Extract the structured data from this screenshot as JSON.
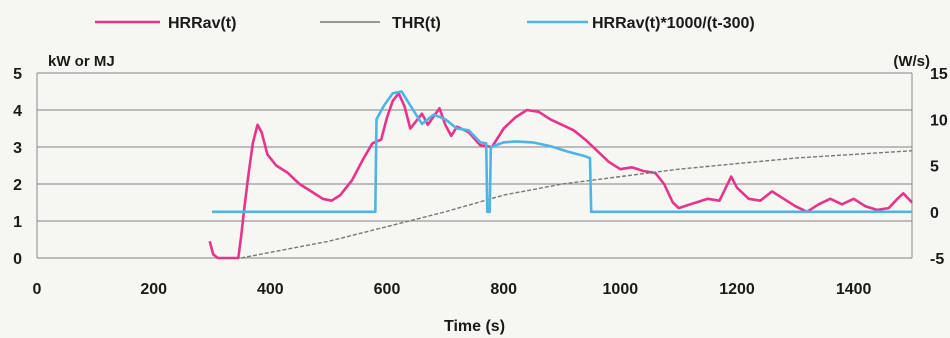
{
  "chart_data": {
    "type": "line",
    "xlabel": "Time (s)",
    "ylabel_left": "kW or MJ",
    "ylabel_right": "(W/s)",
    "xlim": [
      0,
      1500
    ],
    "ylim_left": [
      0,
      5
    ],
    "ylim_right": [
      -5,
      15
    ],
    "x_ticks": [
      "0",
      "200",
      "400",
      "600",
      "800",
      "1000",
      "1200",
      "1400"
    ],
    "y_ticks_left": [
      "0",
      "1",
      "2",
      "3",
      "4",
      "5"
    ],
    "y_ticks_right": [
      "-5",
      "0",
      "5",
      "10",
      "15"
    ],
    "grid": true,
    "legend_position": "top",
    "series": [
      {
        "name": "HRRav(t)",
        "axis": "left",
        "color": "#e8338a",
        "points": [
          [
            296,
            0.45
          ],
          [
            302,
            0.1
          ],
          [
            310,
            0.0
          ],
          [
            345,
            0.0
          ],
          [
            350,
            0.6
          ],
          [
            355,
            1.3
          ],
          [
            362,
            2.2
          ],
          [
            370,
            3.1
          ],
          [
            378,
            3.6
          ],
          [
            385,
            3.4
          ],
          [
            395,
            2.8
          ],
          [
            410,
            2.5
          ],
          [
            430,
            2.3
          ],
          [
            450,
            2.0
          ],
          [
            470,
            1.8
          ],
          [
            490,
            1.6
          ],
          [
            505,
            1.55
          ],
          [
            520,
            1.7
          ],
          [
            540,
            2.1
          ],
          [
            560,
            2.7
          ],
          [
            575,
            3.1
          ],
          [
            590,
            3.2
          ],
          [
            600,
            3.8
          ],
          [
            610,
            4.25
          ],
          [
            620,
            4.45
          ],
          [
            630,
            4.1
          ],
          [
            640,
            3.5
          ],
          [
            650,
            3.7
          ],
          [
            660,
            3.9
          ],
          [
            670,
            3.6
          ],
          [
            690,
            4.05
          ],
          [
            700,
            3.6
          ],
          [
            710,
            3.3
          ],
          [
            720,
            3.55
          ],
          [
            740,
            3.4
          ],
          [
            760,
            3.05
          ],
          [
            780,
            3.0
          ],
          [
            800,
            3.5
          ],
          [
            820,
            3.8
          ],
          [
            840,
            4.0
          ],
          [
            860,
            3.95
          ],
          [
            880,
            3.75
          ],
          [
            900,
            3.6
          ],
          [
            920,
            3.45
          ],
          [
            940,
            3.2
          ],
          [
            960,
            2.9
          ],
          [
            980,
            2.6
          ],
          [
            1000,
            2.4
          ],
          [
            1020,
            2.45
          ],
          [
            1040,
            2.35
          ],
          [
            1060,
            2.3
          ],
          [
            1075,
            2.0
          ],
          [
            1090,
            1.5
          ],
          [
            1100,
            1.35
          ],
          [
            1120,
            1.45
          ],
          [
            1150,
            1.6
          ],
          [
            1170,
            1.55
          ],
          [
            1190,
            2.2
          ],
          [
            1200,
            1.9
          ],
          [
            1220,
            1.6
          ],
          [
            1240,
            1.55
          ],
          [
            1260,
            1.8
          ],
          [
            1280,
            1.6
          ],
          [
            1300,
            1.4
          ],
          [
            1320,
            1.25
          ],
          [
            1340,
            1.45
          ],
          [
            1360,
            1.6
          ],
          [
            1380,
            1.45
          ],
          [
            1400,
            1.6
          ],
          [
            1420,
            1.4
          ],
          [
            1440,
            1.3
          ],
          [
            1460,
            1.35
          ],
          [
            1475,
            1.6
          ],
          [
            1485,
            1.75
          ],
          [
            1500,
            1.5
          ]
        ]
      },
      {
        "name": "THR(t)",
        "axis": "left",
        "color": "#777777",
        "points": [
          [
            350,
            0.0
          ],
          [
            400,
            0.15
          ],
          [
            500,
            0.45
          ],
          [
            600,
            0.85
          ],
          [
            700,
            1.25
          ],
          [
            800,
            1.7
          ],
          [
            900,
            2.0
          ],
          [
            1000,
            2.2
          ],
          [
            1100,
            2.4
          ],
          [
            1200,
            2.55
          ],
          [
            1300,
            2.7
          ],
          [
            1400,
            2.8
          ],
          [
            1500,
            2.9
          ]
        ]
      },
      {
        "name": "HRRav(t)*1000/(t-300)",
        "axis": "right",
        "color": "#4db5e6",
        "points": [
          [
            300,
            0.0
          ],
          [
            580,
            0.0
          ],
          [
            582,
            10.0
          ],
          [
            595,
            11.5
          ],
          [
            610,
            12.8
          ],
          [
            625,
            13.0
          ],
          [
            640,
            11.5
          ],
          [
            660,
            9.5
          ],
          [
            680,
            10.5
          ],
          [
            700,
            10.0
          ],
          [
            720,
            9.0
          ],
          [
            740,
            8.8
          ],
          [
            760,
            7.5
          ],
          [
            770,
            7.4
          ],
          [
            772,
            0.0
          ],
          [
            776,
            0.0
          ],
          [
            778,
            7.0
          ],
          [
            800,
            7.5
          ],
          [
            820,
            7.6
          ],
          [
            850,
            7.5
          ],
          [
            880,
            7.1
          ],
          [
            910,
            6.5
          ],
          [
            940,
            6.0
          ],
          [
            948,
            5.8
          ],
          [
            950,
            0.0
          ],
          [
            1500,
            0.0
          ]
        ]
      }
    ]
  }
}
